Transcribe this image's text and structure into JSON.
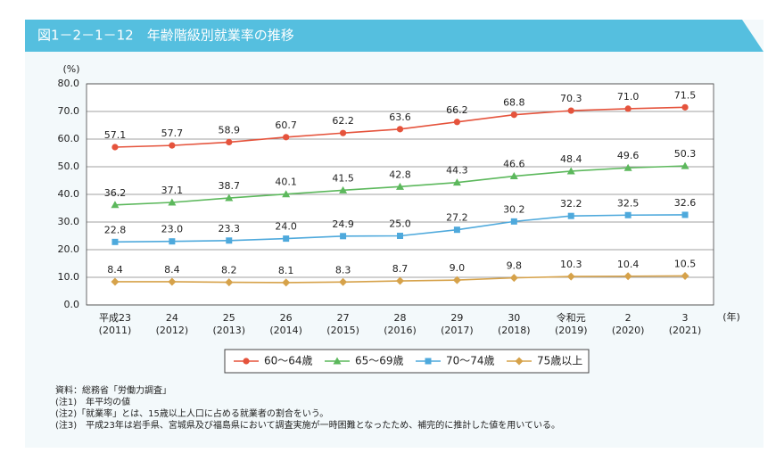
{
  "chart_data": {
    "type": "line",
    "title": "図1－2－1－12　年齢階級別就業率の推移",
    "y_unit": "(%)",
    "x_unit": "(年)",
    "categories": [
      "平成23",
      "24",
      "25",
      "26",
      "27",
      "28",
      "29",
      "30",
      "令和元",
      "2",
      "3"
    ],
    "category_years": [
      "(2011)",
      "(2012)",
      "(2013)",
      "(2014)",
      "(2015)",
      "(2016)",
      "(2017)",
      "(2018)",
      "(2019)",
      "(2020)",
      "(2021)"
    ],
    "series": [
      {
        "name": "60～64歳",
        "color": "#e5533c",
        "marker": "circle",
        "values": [
          57.1,
          57.7,
          58.9,
          60.7,
          62.2,
          63.6,
          66.2,
          68.8,
          70.3,
          71.0,
          71.5
        ],
        "value_labels": [
          "57.1",
          "57.7",
          "58.9",
          "60.7",
          "62.2",
          "63.6",
          "66.2",
          "68.8",
          "70.3",
          "71.0",
          "71.5"
        ]
      },
      {
        "name": "65～69歳",
        "color": "#5cb85c",
        "marker": "triangle",
        "values": [
          36.2,
          37.1,
          38.7,
          40.1,
          41.5,
          42.8,
          44.3,
          46.6,
          48.4,
          49.6,
          50.3
        ],
        "value_labels": [
          "36.2",
          "37.1",
          "38.7",
          "40.1",
          "41.5",
          "42.8",
          "44.3",
          "46.6",
          "48.4",
          "49.6",
          "50.3"
        ]
      },
      {
        "name": "70～74歳",
        "color": "#4ea9dc",
        "marker": "square",
        "values": [
          22.8,
          23.0,
          23.3,
          24.0,
          24.9,
          25.0,
          27.2,
          30.2,
          32.2,
          32.5,
          32.6
        ],
        "value_labels": [
          "22.8",
          "23.0",
          "23.3",
          "24.0",
          "24.9",
          "25.0",
          "27.2",
          "30.2",
          "32.2",
          "32.5",
          "32.6"
        ]
      },
      {
        "name": "75歳以上",
        "color": "#d6a24a",
        "marker": "diamond",
        "values": [
          8.4,
          8.4,
          8.2,
          8.1,
          8.3,
          8.7,
          9.0,
          9.8,
          10.3,
          10.4,
          10.5
        ],
        "value_labels": [
          "8.4",
          "8.4",
          "8.2",
          "8.1",
          "8.3",
          "8.7",
          "9.0",
          "9.8",
          "10.3",
          "10.4",
          "10.5"
        ]
      }
    ],
    "ylim": [
      0,
      80
    ],
    "yticks": [
      {
        "value": 0,
        "label": "0.0"
      },
      {
        "value": 10,
        "label": "10.0"
      },
      {
        "value": 20,
        "label": "20.0"
      },
      {
        "value": 30,
        "label": "30.0"
      },
      {
        "value": 40,
        "label": "40.0"
      },
      {
        "value": 50,
        "label": "50.0"
      },
      {
        "value": 60,
        "label": "60.0"
      },
      {
        "value": 70,
        "label": "70.0"
      },
      {
        "value": 80,
        "label": "80.0"
      }
    ],
    "grid": true,
    "legend": "bottom",
    "notes": [
      "資料：総務省「労働力調査」",
      "(注1)　年平均の値",
      "(注2)「就業率」とは、15歳以上人口に占める就業者の割合をいう。",
      "(注3)　平成23年は岩手県、宮城県及び福島県において調査実施が一時困難となったため、補完的に推計した値を用いている。"
    ]
  }
}
